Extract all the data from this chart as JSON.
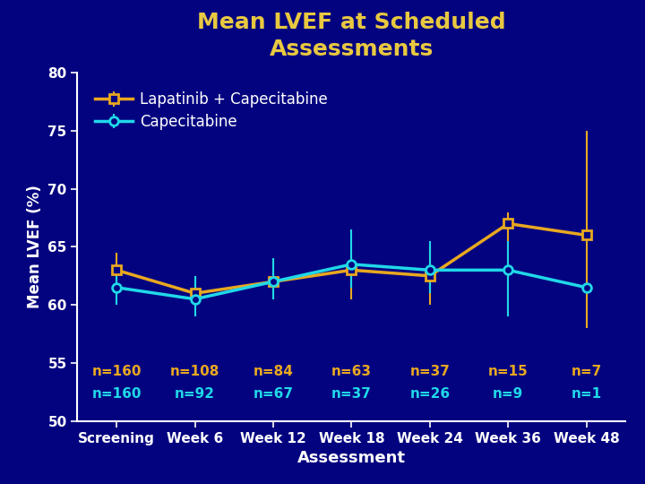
{
  "title": "Mean LVEF at Scheduled\nAssessments",
  "ylabel": "Mean LVEF (%)",
  "xlabel": "Assessment",
  "background_color": "#030380",
  "title_color": "#e8c840",
  "axis_color": "#ffffff",
  "x_labels": [
    "Screening",
    "Week 6",
    "Week 12",
    "Week 18",
    "Week 24",
    "Week 36",
    "Week 48"
  ],
  "x_positions": [
    0,
    1,
    2,
    3,
    4,
    5,
    6
  ],
  "ylim": [
    50,
    80
  ],
  "yticks": [
    50,
    55,
    60,
    65,
    70,
    75,
    80
  ],
  "series": [
    {
      "name": "Lapatinib + Capecitabine",
      "color": "#e8a820",
      "marker": "s",
      "markersize": 7,
      "values": [
        63.0,
        61.0,
        62.0,
        63.0,
        62.5,
        67.0,
        66.0
      ],
      "yerr_low": [
        1.5,
        1.5,
        1.5,
        2.5,
        2.5,
        8.0,
        8.0
      ],
      "yerr_high": [
        1.5,
        1.5,
        2.0,
        1.5,
        2.5,
        1.0,
        9.0
      ]
    },
    {
      "name": "Capecitabine",
      "color": "#20d8e8",
      "marker": "o",
      "markersize": 7,
      "values": [
        61.5,
        60.5,
        62.0,
        63.5,
        63.0,
        63.0,
        61.5
      ],
      "yerr_low": [
        1.5,
        1.5,
        1.5,
        2.0,
        2.0,
        4.0,
        0.0
      ],
      "yerr_high": [
        1.5,
        2.0,
        2.0,
        3.0,
        2.5,
        2.5,
        0.0
      ]
    }
  ],
  "n_labels": [
    [
      "n=160",
      "n=108",
      "n=84",
      "n=63",
      "n=37",
      "n=15",
      "n=7"
    ],
    [
      "n=160",
      "n=92",
      "n=67",
      "n=37",
      "n=26",
      "n=9",
      "n=1"
    ]
  ],
  "n_colors": [
    "#e8a820",
    "#20d8e8"
  ],
  "title_fontsize": 18,
  "label_fontsize": 12,
  "tick_fontsize": 11,
  "legend_fontsize": 12,
  "n_fontsize": 11
}
